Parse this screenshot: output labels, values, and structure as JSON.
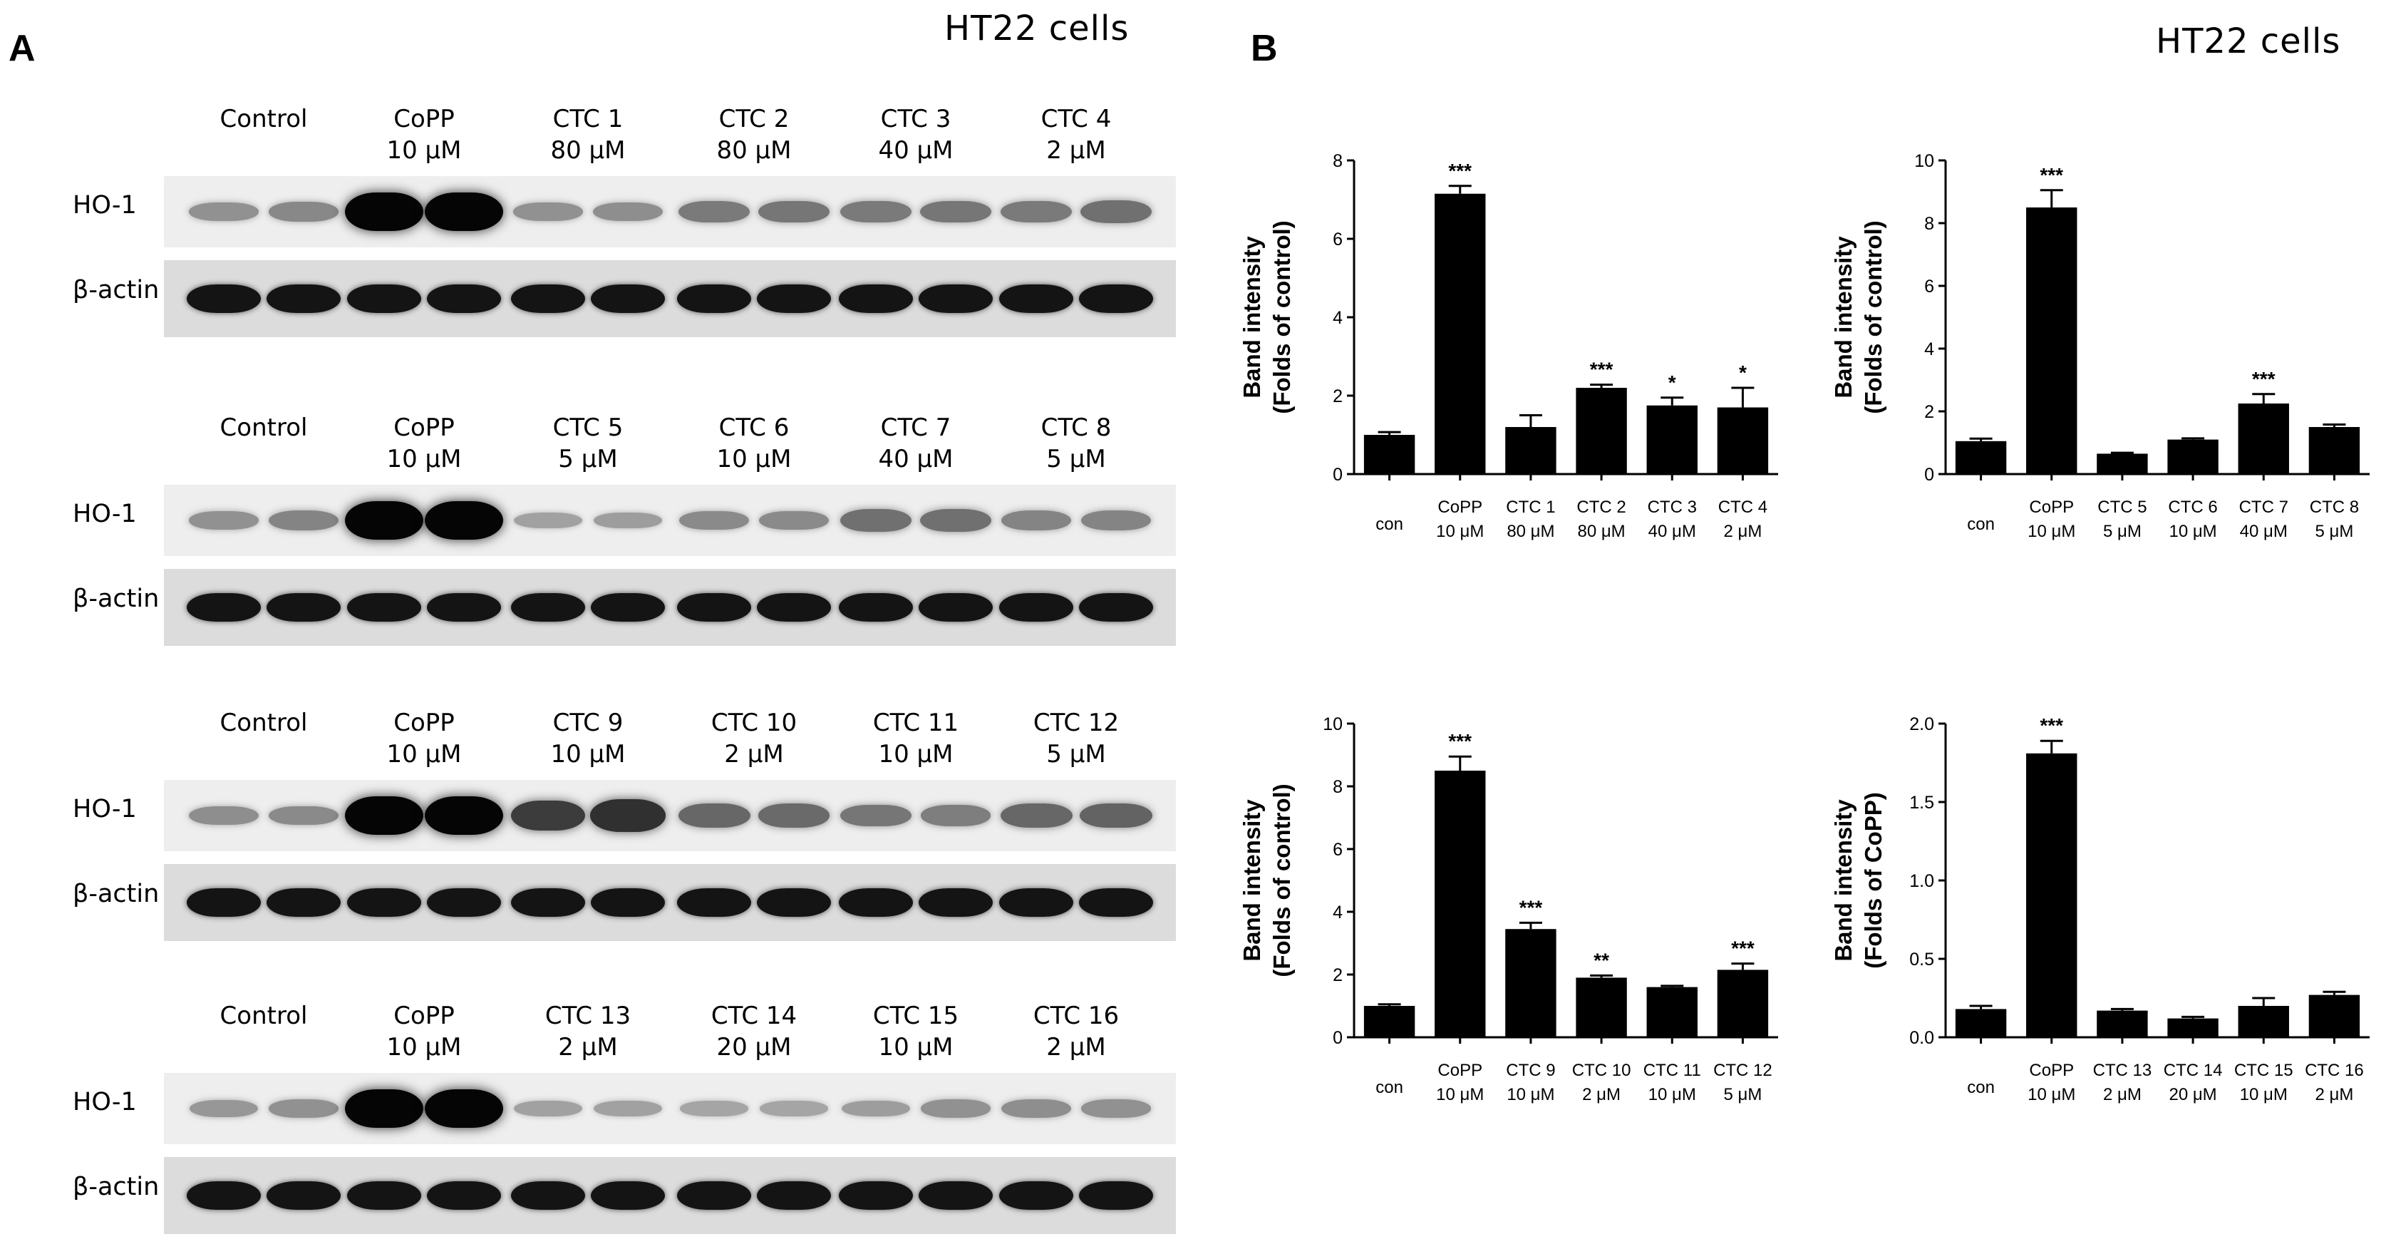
{
  "panel_a": {
    "letter": "A",
    "title": "HT22 cells",
    "row_labels": {
      "ho1": "HO-1",
      "actin": "β-actin"
    },
    "blots": [
      {
        "lanes": [
          {
            "name": "Control",
            "dose": ""
          },
          {
            "name": "CoPP",
            "dose": "10 μM"
          },
          {
            "name": "CTC 1",
            "dose": "80 μM"
          },
          {
            "name": "CTC 2",
            "dose": "80 μM"
          },
          {
            "name": "CTC 3",
            "dose": "40 μM"
          },
          {
            "name": "CTC 4",
            "dose": "2 μM"
          }
        ],
        "ho1_intensity": [
          0.28,
          0.33,
          1.0,
          1.0,
          0.28,
          0.3,
          0.4,
          0.42,
          0.4,
          0.42,
          0.4,
          0.45
        ]
      },
      {
        "lanes": [
          {
            "name": "Control",
            "dose": ""
          },
          {
            "name": "CoPP",
            "dose": "10 μM"
          },
          {
            "name": "CTC 5",
            "dose": "5 μM"
          },
          {
            "name": "CTC 6",
            "dose": "10 μM"
          },
          {
            "name": "CTC 7",
            "dose": "40 μM"
          },
          {
            "name": "CTC 8",
            "dose": "5 μM"
          }
        ],
        "ho1_intensity": [
          0.28,
          0.35,
          1.0,
          1.0,
          0.2,
          0.22,
          0.32,
          0.32,
          0.45,
          0.45,
          0.35,
          0.35
        ]
      },
      {
        "lanes": [
          {
            "name": "Control",
            "dose": ""
          },
          {
            "name": "CoPP",
            "dose": "10 μM"
          },
          {
            "name": "CTC 9",
            "dose": "10 μM"
          },
          {
            "name": "CTC 10",
            "dose": "2 μM"
          },
          {
            "name": "CTC 11",
            "dose": "10 μM"
          },
          {
            "name": "CTC 12",
            "dose": "5 μM"
          }
        ],
        "ho1_intensity": [
          0.3,
          0.32,
          1.0,
          1.0,
          0.72,
          0.78,
          0.5,
          0.48,
          0.42,
          0.38,
          0.5,
          0.52
        ]
      },
      {
        "lanes": [
          {
            "name": "Control",
            "dose": ""
          },
          {
            "name": "CoPP",
            "dose": "10 μM"
          },
          {
            "name": "CTC 13",
            "dose": "2 μM"
          },
          {
            "name": "CTC 14",
            "dose": "20 μM"
          },
          {
            "name": "CTC 15",
            "dose": "10 μM"
          },
          {
            "name": "CTC 16",
            "dose": "2 μM"
          }
        ],
        "ho1_intensity": [
          0.25,
          0.28,
          1.0,
          1.0,
          0.2,
          0.2,
          0.18,
          0.18,
          0.22,
          0.28,
          0.3,
          0.28
        ]
      }
    ]
  },
  "panel_b": {
    "letter": "B",
    "title": "HT22 cells"
  },
  "chart_data": [
    {
      "type": "bar",
      "categories": [
        [
          "con",
          ""
        ],
        [
          "CoPP",
          "10 μM"
        ],
        [
          "CTC 1",
          "80 μM"
        ],
        [
          "CTC 2",
          "80 μM"
        ],
        [
          "CTC 3",
          "40 μM"
        ],
        [
          "CTC 4",
          "2 μM"
        ]
      ],
      "values": [
        1.0,
        7.15,
        1.2,
        2.2,
        1.75,
        1.7
      ],
      "errors": [
        0.07,
        0.2,
        0.3,
        0.08,
        0.2,
        0.5
      ],
      "significance": [
        "",
        "***",
        "",
        "***",
        "*",
        "*"
      ],
      "ylabel": [
        "Band intensity",
        "(Folds of control)"
      ],
      "ylim": [
        0,
        8
      ],
      "yticks": [
        0,
        2,
        4,
        6,
        8
      ],
      "ytick_labels": [
        "0",
        "2",
        "4",
        "6",
        "8"
      ]
    },
    {
      "type": "bar",
      "categories": [
        [
          "con",
          ""
        ],
        [
          "CoPP",
          "10 μM"
        ],
        [
          "CTC 5",
          "5 μM"
        ],
        [
          "CTC 6",
          "10 μM"
        ],
        [
          "CTC 7",
          "40 μM"
        ],
        [
          "CTC 8",
          "5 μM"
        ]
      ],
      "values": [
        1.05,
        8.5,
        0.65,
        1.1,
        2.25,
        1.5
      ],
      "errors": [
        0.08,
        0.55,
        0.03,
        0.04,
        0.3,
        0.08
      ],
      "significance": [
        "",
        "***",
        "",
        "",
        "***",
        ""
      ],
      "ylabel": [
        "Band intensity",
        "(Folds of control)"
      ],
      "ylim": [
        0,
        10
      ],
      "yticks": [
        0,
        2,
        4,
        6,
        8,
        10
      ],
      "ytick_labels": [
        "0",
        "2",
        "4",
        "6",
        "8",
        "10"
      ]
    },
    {
      "type": "bar",
      "categories": [
        [
          "con",
          ""
        ],
        [
          "CoPP",
          "10 μM"
        ],
        [
          "CTC 9",
          "10 μM"
        ],
        [
          "CTC 10",
          "2 μM"
        ],
        [
          "CTC 11",
          "10 μM"
        ],
        [
          "CTC 12",
          "5 μM"
        ]
      ],
      "values": [
        1.0,
        8.5,
        3.45,
        1.9,
        1.6,
        2.15
      ],
      "errors": [
        0.05,
        0.45,
        0.2,
        0.07,
        0.04,
        0.2
      ],
      "significance": [
        "",
        "***",
        "***",
        "**",
        "",
        "***"
      ],
      "ylabel": [
        "Band intensity",
        "(Folds of control)"
      ],
      "ylim": [
        0,
        10
      ],
      "yticks": [
        0,
        2,
        4,
        6,
        8,
        10
      ],
      "ytick_labels": [
        "0",
        "2",
        "4",
        "6",
        "8",
        "10"
      ]
    },
    {
      "type": "bar",
      "categories": [
        [
          "con",
          ""
        ],
        [
          "CoPP",
          "10 μM"
        ],
        [
          "CTC 13",
          "2 μM"
        ],
        [
          "CTC 14",
          "20 μM"
        ],
        [
          "CTC 15",
          "10 μM"
        ],
        [
          "CTC 16",
          "2 μM"
        ]
      ],
      "values": [
        0.18,
        1.81,
        0.17,
        0.12,
        0.2,
        0.27
      ],
      "errors": [
        0.02,
        0.08,
        0.01,
        0.01,
        0.05,
        0.02
      ],
      "significance": [
        "",
        "***",
        "",
        "",
        "",
        ""
      ],
      "ylabel": [
        "Band intensity",
        "(Folds of CoPP)"
      ],
      "ylim": [
        0,
        2.0
      ],
      "yticks": [
        0,
        0.5,
        1.0,
        1.5,
        2.0
      ],
      "ytick_labels": [
        "0.0",
        "0.5",
        "1.0",
        "1.5",
        "2.0"
      ]
    }
  ]
}
